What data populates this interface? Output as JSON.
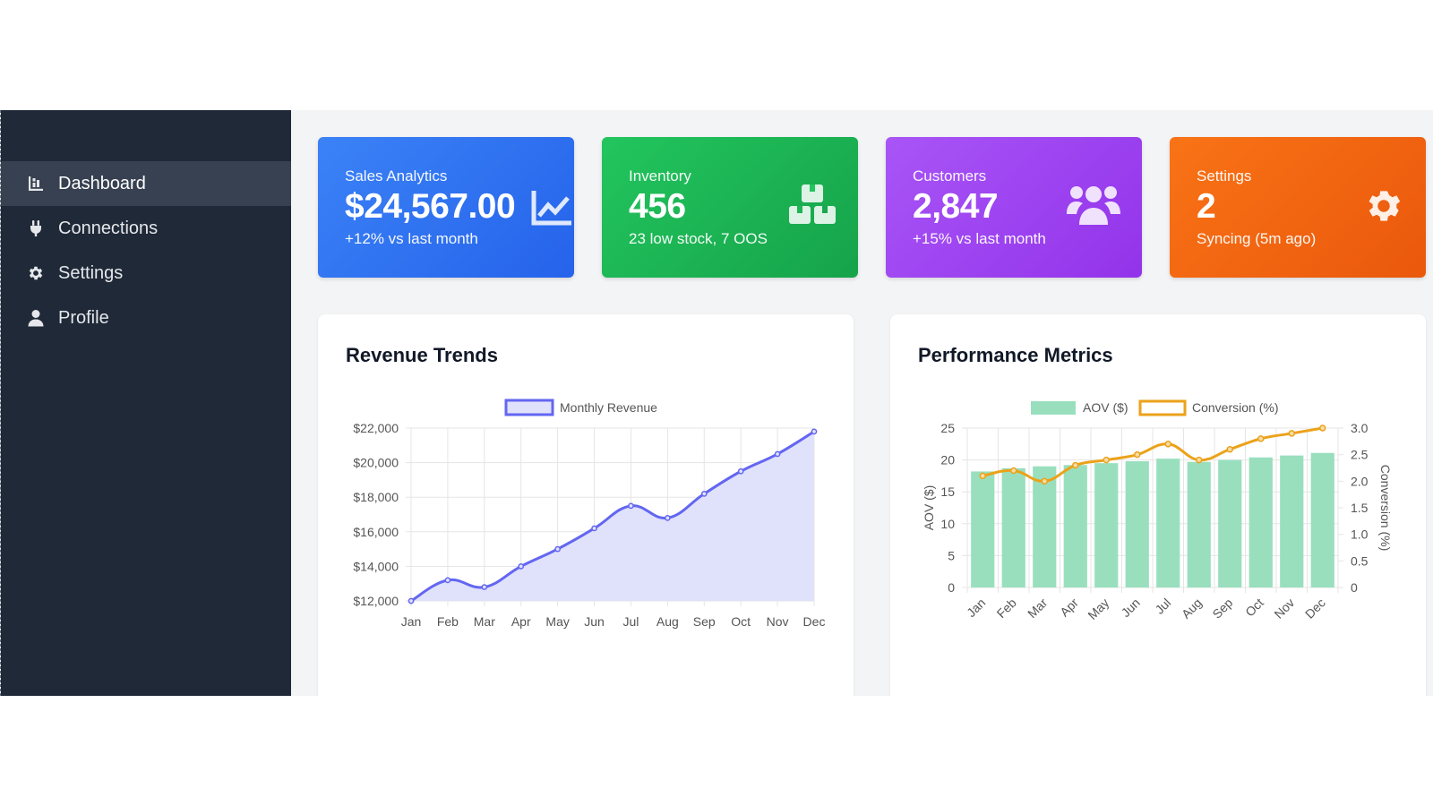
{
  "sidebar": {
    "items": [
      {
        "label": "Dashboard",
        "icon": "chart-bar-icon",
        "active": true
      },
      {
        "label": "Connections",
        "icon": "plug-icon",
        "active": false
      },
      {
        "label": "Settings",
        "icon": "gear-icon",
        "active": false
      },
      {
        "label": "Profile",
        "icon": "user-icon",
        "active": false
      }
    ]
  },
  "cards": [
    {
      "title": "Sales Analytics",
      "value": "$24,567.00",
      "sub": "+12% vs last month",
      "icon": "chart-line-icon",
      "color": "#2563eb"
    },
    {
      "title": "Inventory",
      "value": "456",
      "sub": "23 low stock, 7 OOS",
      "icon": "boxes-icon",
      "color": "#16a34a"
    },
    {
      "title": "Customers",
      "value": "2,847",
      "sub": "+15% vs last month",
      "icon": "users-icon",
      "color": "#9333ea"
    },
    {
      "title": "Settings",
      "value": "2",
      "sub": "Syncing (5m ago)",
      "icon": "gear-icon",
      "color": "#ea580c"
    }
  ],
  "panels": {
    "revenue_title": "Revenue Trends",
    "performance_title": "Performance Metrics"
  },
  "chart_data": [
    {
      "type": "line",
      "title": "Revenue Trends",
      "categories": [
        "Jan",
        "Feb",
        "Mar",
        "Apr",
        "May",
        "Jun",
        "Jul",
        "Aug",
        "Sep",
        "Oct",
        "Nov",
        "Dec"
      ],
      "series": [
        {
          "name": "Monthly Revenue",
          "values": [
            12000,
            13200,
            12800,
            14000,
            15000,
            16200,
            17500,
            16800,
            18200,
            19500,
            20500,
            21800
          ],
          "color": "#6366f1",
          "fill": "#e0e1fb"
        }
      ],
      "ylim": [
        12000,
        22000
      ],
      "yticks": [
        "$12,000",
        "$14,000",
        "$16,000",
        "$18,000",
        "$20,000",
        "$22,000"
      ],
      "legend": "top-center",
      "grid": true
    },
    {
      "type": "bar",
      "title": "Performance Metrics",
      "categories": [
        "Jan",
        "Feb",
        "Mar",
        "Apr",
        "May",
        "Jun",
        "Jul",
        "Aug",
        "Sep",
        "Oct",
        "Nov",
        "Dec"
      ],
      "series": [
        {
          "name": "AOV ($)",
          "type": "bar",
          "axis": "left",
          "values": [
            18.2,
            18.7,
            19.0,
            19.2,
            19.5,
            19.8,
            20.2,
            19.7,
            20.0,
            20.4,
            20.7,
            21.1
          ],
          "color": "#99dfbe"
        },
        {
          "name": "Conversion (%)",
          "type": "line",
          "axis": "right",
          "values": [
            2.1,
            2.2,
            2.0,
            2.3,
            2.4,
            2.5,
            2.7,
            2.4,
            2.6,
            2.8,
            2.9,
            3.0
          ],
          "color": "#eba21a"
        }
      ],
      "ylim_left": [
        0,
        25
      ],
      "ylim_right": [
        0,
        3.0
      ],
      "yticks_left": [
        "0",
        "5",
        "10",
        "15",
        "20",
        "25"
      ],
      "yticks_right": [
        "0",
        "0.5",
        "1.0",
        "1.5",
        "2.0",
        "2.5",
        "3.0"
      ],
      "ylabel_left": "AOV ($)",
      "ylabel_right": "Conversion (%)",
      "legend": "top-center",
      "grid": true
    }
  ]
}
